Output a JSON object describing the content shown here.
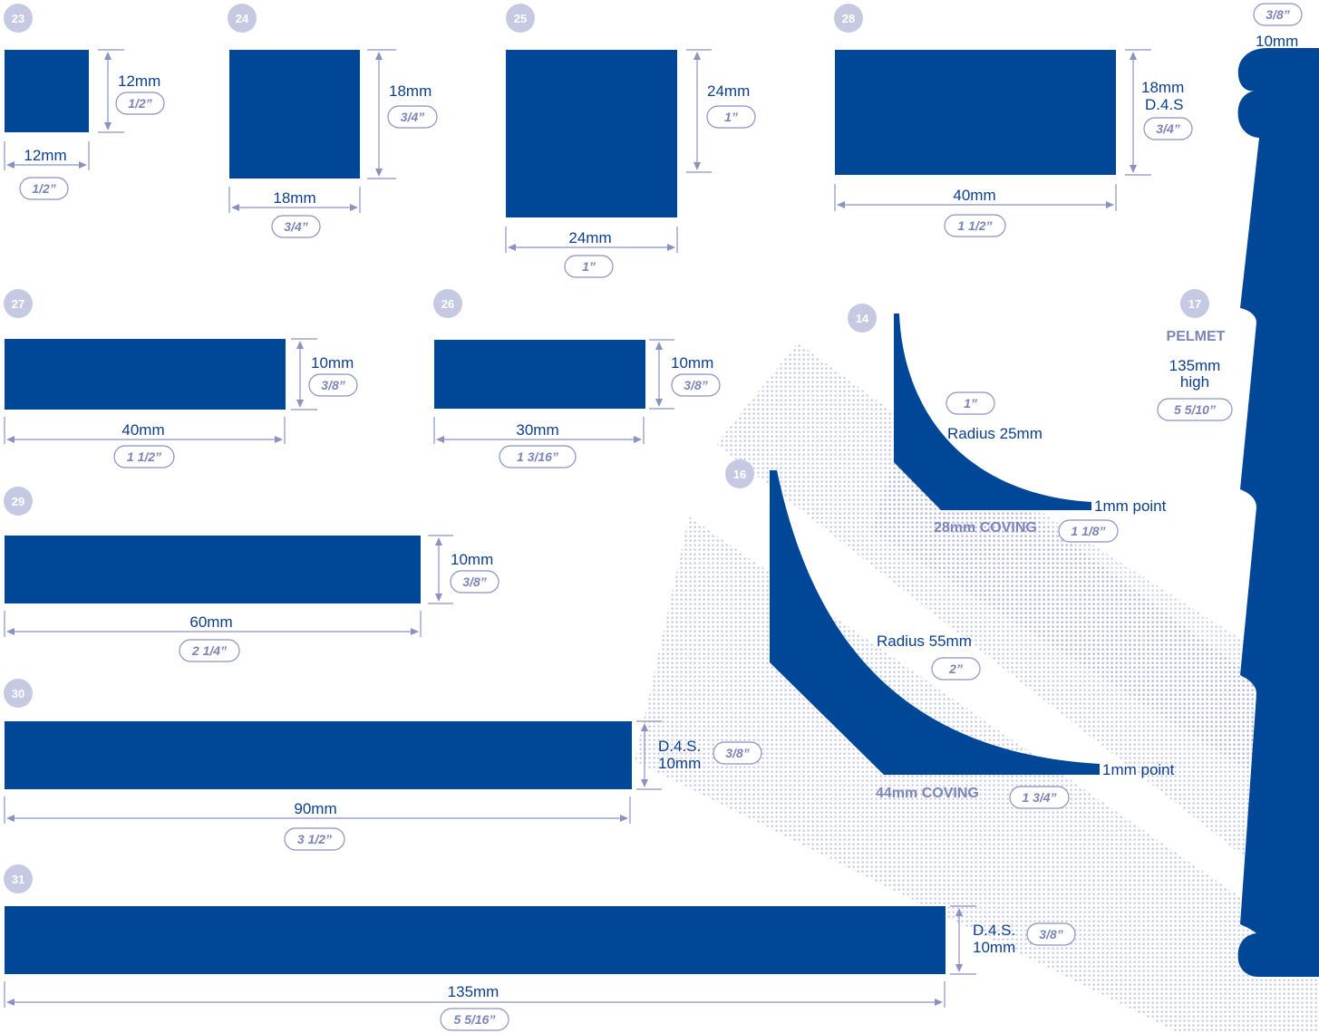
{
  "colors": {
    "profile": "#004797",
    "dimension": "#8a92c2",
    "badge": "#c6c9e2",
    "text": "#0b3f8c",
    "pill_text": "#7c85b8"
  },
  "profiles": {
    "p23": {
      "number": "23",
      "height_mm": "12mm",
      "height_in": "1/2”",
      "width_mm": "12mm",
      "width_in": "1/2”"
    },
    "p24": {
      "number": "24",
      "height_mm": "18mm",
      "height_in": "3/4”",
      "width_mm": "18mm",
      "width_in": "3/4”"
    },
    "p25": {
      "number": "25",
      "height_mm": "24mm",
      "height_in": "1”",
      "width_mm": "24mm",
      "width_in": "1”"
    },
    "p28": {
      "number": "28",
      "height_mm": "18mm",
      "height_note": "D.4.S",
      "height_in": "3/4”",
      "width_mm": "40mm",
      "width_in": "1 1/2”"
    },
    "p27": {
      "number": "27",
      "height_mm": "10mm",
      "height_in": "3/8”",
      "width_mm": "40mm",
      "width_in": "1 1/2”"
    },
    "p26": {
      "number": "26",
      "height_mm": "10mm",
      "height_in": "3/8”",
      "width_mm": "30mm",
      "width_in": "1 3/16”"
    },
    "p29": {
      "number": "29",
      "height_mm": "10mm",
      "height_in": "3/8”",
      "width_mm": "60mm",
      "width_in": "2 1/4”"
    },
    "p30": {
      "number": "30",
      "height_note": "D.4.S.",
      "height_mm": "10mm",
      "height_in": "3/8”",
      "width_mm": "90mm",
      "width_in": "3 1/2”"
    },
    "p31": {
      "number": "31",
      "height_note": "D.4.S.",
      "height_mm": "10mm",
      "height_in": "3/8”",
      "width_mm": "135mm",
      "width_in": "5 5/16”"
    },
    "p14": {
      "number": "14",
      "radius_in": "1”",
      "radius": "Radius 25mm",
      "point": "1mm point",
      "name": "28mm COVING",
      "size_in": "1 1/8”"
    },
    "p16": {
      "number": "16",
      "radius": "Radius 55mm",
      "radius_in": "2”",
      "point": "1mm point",
      "name": "44mm COVING",
      "size_in": "1 3/4”"
    },
    "p17": {
      "number": "17",
      "name": "PELMET",
      "height_line1": "135mm",
      "height_line2": "high",
      "height_in": "5 5/10”",
      "thickness_in": "3/8”",
      "thickness_mm": "10mm"
    }
  }
}
